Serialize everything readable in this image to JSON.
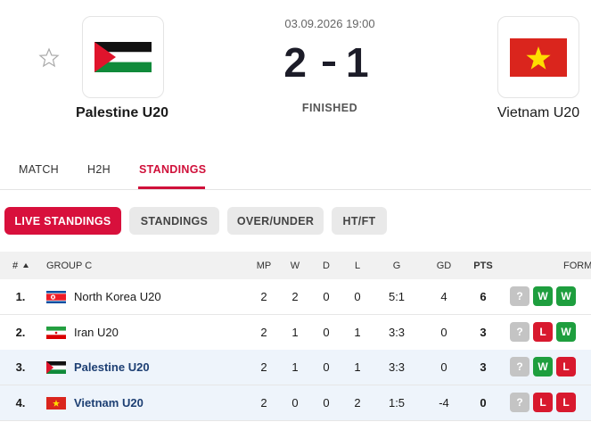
{
  "match": {
    "datetime": "03.09.2026 19:00",
    "home": "Palestine U20",
    "away": "Vietnam U20",
    "score_home": 2,
    "score_away": 1,
    "status": "FINISHED"
  },
  "tabs": [
    "MATCH",
    "H2H",
    "STANDINGS"
  ],
  "filters": [
    "LIVE STANDINGS",
    "STANDINGS",
    "OVER/UNDER",
    "HT/FT"
  ],
  "table": {
    "headers": [
      "#",
      "GROUP C",
      "MP",
      "W",
      "D",
      "L",
      "G",
      "GD",
      "PTS",
      "FORM"
    ],
    "rows": [
      {
        "rank": "1.",
        "team": "North Korea U20",
        "mp": 2,
        "w": 2,
        "d": 0,
        "l": 0,
        "g": "5:1",
        "gd": 4,
        "pts": 6,
        "form": [
          {
            "label": "?",
            "color": "#c4c4c4"
          },
          {
            "label": "W",
            "color": "#1e9e3e"
          },
          {
            "label": "W",
            "color": "#1e9e3e"
          }
        ]
      },
      {
        "rank": "2.",
        "team": "Iran U20",
        "mp": 2,
        "w": 1,
        "d": 0,
        "l": 1,
        "g": "3:3",
        "gd": 0,
        "pts": 3,
        "form": [
          {
            "label": "?",
            "color": "#c4c4c4"
          },
          {
            "label": "L",
            "color": "#d8192e"
          },
          {
            "label": "W",
            "color": "#1e9e3e"
          }
        ]
      },
      {
        "rank": "3.",
        "team": "Palestine U20",
        "mp": 2,
        "w": 1,
        "d": 0,
        "l": 1,
        "g": "3:3",
        "gd": 0,
        "pts": 3,
        "form": [
          {
            "label": "?",
            "color": "#c4c4c4"
          },
          {
            "label": "W",
            "color": "#1e9e3e"
          },
          {
            "label": "L",
            "color": "#d8192e"
          }
        ]
      },
      {
        "rank": "4.",
        "team": "Vietnam U20",
        "mp": 2,
        "w": 0,
        "d": 0,
        "l": 2,
        "g": "1:5",
        "gd": -4,
        "pts": 0,
        "form": [
          {
            "label": "?",
            "color": "#c4c4c4"
          },
          {
            "label": "L",
            "color": "#d8192e"
          },
          {
            "label": "L",
            "color": "#d8192e"
          }
        ]
      }
    ]
  }
}
